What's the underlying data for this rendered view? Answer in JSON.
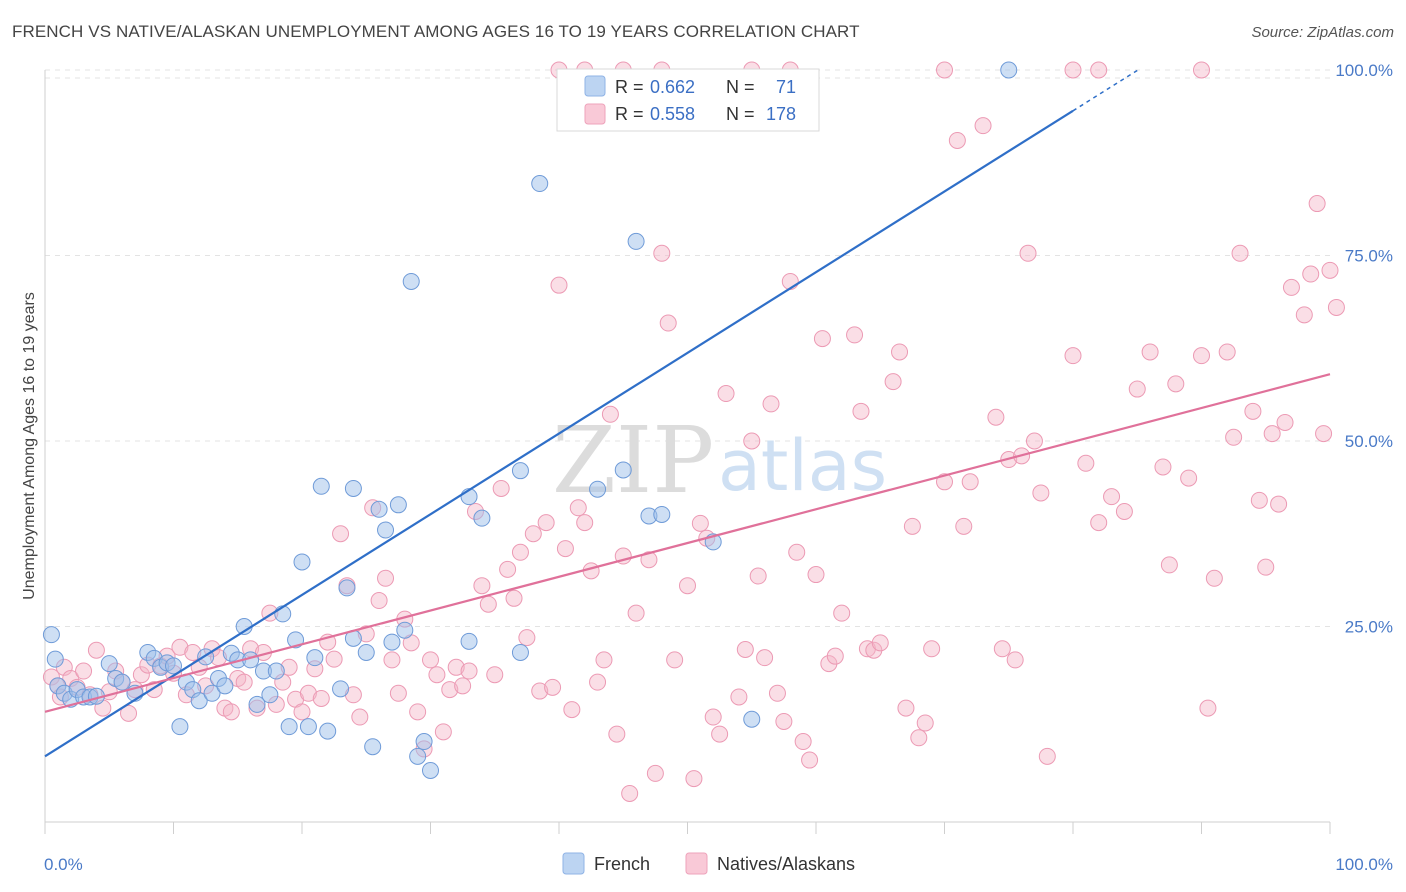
{
  "title": "FRENCH VS NATIVE/ALASKAN UNEMPLOYMENT AMONG AGES 16 TO 19 YEARS CORRELATION CHART",
  "source": "Source: ZipAtlas.com",
  "watermark": {
    "zip": "ZIP",
    "atlas": "atlas"
  },
  "stats": {
    "r_label": "R =",
    "n_label": "N =",
    "french": {
      "r": "0.662",
      "n": "71"
    },
    "natives": {
      "r": "0.558",
      "n": "178"
    }
  },
  "chart_data": {
    "type": "scatter",
    "title": "FRENCH VS NATIVE/ALASKAN UNEMPLOYMENT AMONG AGES 16 TO 19 YEARS CORRELATION CHART",
    "xlabel": "",
    "ylabel": "Unemployment Among Ages 16 to 19 years",
    "xlim": [
      0,
      100
    ],
    "ylim": [
      0,
      102
    ],
    "x_tick_labels": [
      "0.0%",
      "100.0%"
    ],
    "y_tick_values": [
      25,
      50,
      75,
      100
    ],
    "y_tick_labels": [
      "25.0%",
      "50.0%",
      "75.0%",
      "100.0%"
    ],
    "grid": "horizontal dashed",
    "legend_position": "bottom-center",
    "colors": {
      "french": "#9dbfea",
      "french_line": "#2f6fc8",
      "natives": "#f5b5c8",
      "natives_line": "#e0719a"
    },
    "series": [
      {
        "name": "French",
        "trend": {
          "x0": 0,
          "y0": 7.5,
          "x1": 80,
          "y1": 94.5
        },
        "points": [
          [
            0.5,
            23.9
          ],
          [
            0.8,
            20.6
          ],
          [
            1,
            17
          ],
          [
            1.5,
            16
          ],
          [
            2,
            15.2
          ],
          [
            2.5,
            16.5
          ],
          [
            3,
            15.5
          ],
          [
            3.5,
            15.5
          ],
          [
            4,
            15.6
          ],
          [
            5,
            20
          ],
          [
            5.5,
            18
          ],
          [
            6,
            17.5
          ],
          [
            7,
            16
          ],
          [
            8,
            21.5
          ],
          [
            8.5,
            20.7
          ],
          [
            9,
            19.5
          ],
          [
            9.5,
            20.1
          ],
          [
            10,
            19.7
          ],
          [
            10.5,
            11.5
          ],
          [
            11,
            17.5
          ],
          [
            11.5,
            16.5
          ],
          [
            12,
            15
          ],
          [
            12.5,
            20.9
          ],
          [
            13,
            16
          ],
          [
            13.5,
            18
          ],
          [
            14,
            17
          ],
          [
            14.5,
            21.4
          ],
          [
            15,
            20.5
          ],
          [
            15.5,
            25
          ],
          [
            16,
            20.5
          ],
          [
            16.5,
            14.5
          ],
          [
            17,
            19
          ],
          [
            17.5,
            15.8
          ],
          [
            18,
            19
          ],
          [
            18.5,
            26.7
          ],
          [
            19,
            11.5
          ],
          [
            19.5,
            23.2
          ],
          [
            20,
            33.7
          ],
          [
            20.5,
            11.5
          ],
          [
            21,
            20.8
          ],
          [
            21.5,
            43.9
          ],
          [
            22,
            10.9
          ],
          [
            23,
            16.6
          ],
          [
            23.5,
            30.2
          ],
          [
            24,
            43.6
          ],
          [
            24,
            23.4
          ],
          [
            25,
            21.5
          ],
          [
            25.5,
            8.8
          ],
          [
            26,
            40.8
          ],
          [
            26.5,
            38
          ],
          [
            27,
            22.9
          ],
          [
            27.5,
            41.4
          ],
          [
            28,
            24.5
          ],
          [
            28.5,
            71.5
          ],
          [
            29,
            7.5
          ],
          [
            29.5,
            9.5
          ],
          [
            30,
            5.6
          ],
          [
            33,
            42.5
          ],
          [
            34,
            39.6
          ],
          [
            33,
            23
          ],
          [
            37,
            21.5
          ],
          [
            37,
            46
          ],
          [
            43,
            43.5
          ],
          [
            45,
            46.1
          ],
          [
            46,
            76.9
          ],
          [
            47,
            39.9
          ],
          [
            48,
            40.1
          ],
          [
            52,
            36.4
          ],
          [
            55,
            12.5
          ],
          [
            38.5,
            84.7
          ],
          [
            75,
            100
          ]
        ]
      },
      {
        "name": "Natives/Alaskans",
        "trend": {
          "x0": 0,
          "y0": 13.5,
          "x1": 100,
          "y1": 59
        },
        "points": [
          [
            0.5,
            18.2
          ],
          [
            1,
            17
          ],
          [
            1.2,
            15.5
          ],
          [
            1.5,
            19.5
          ],
          [
            2,
            18
          ],
          [
            2.5,
            16.8
          ],
          [
            3,
            19
          ],
          [
            3.5,
            15.8
          ],
          [
            4,
            21.8
          ],
          [
            4.5,
            14
          ],
          [
            5,
            16.2
          ],
          [
            5.5,
            19
          ],
          [
            6,
            17.5
          ],
          [
            6.5,
            13.3
          ],
          [
            7,
            16.5
          ],
          [
            7.5,
            18.5
          ],
          [
            8,
            19.8
          ],
          [
            8.5,
            16.5
          ],
          [
            9,
            19.7
          ],
          [
            9.5,
            21
          ],
          [
            10,
            18.7
          ],
          [
            10.5,
            22.2
          ],
          [
            11,
            15.8
          ],
          [
            11.5,
            21.5
          ],
          [
            12,
            19.5
          ],
          [
            12.5,
            17
          ],
          [
            13,
            22
          ],
          [
            13.5,
            20.8
          ],
          [
            14,
            14
          ],
          [
            14.5,
            13.5
          ],
          [
            15,
            18
          ],
          [
            15.5,
            17.5
          ],
          [
            16,
            22
          ],
          [
            16.5,
            14
          ],
          [
            17,
            21.5
          ],
          [
            17.5,
            26.8
          ],
          [
            18,
            14.5
          ],
          [
            18.5,
            17.5
          ],
          [
            19,
            19.5
          ],
          [
            19.5,
            15.2
          ],
          [
            20,
            13.5
          ],
          [
            20.5,
            16
          ],
          [
            21,
            19.3
          ],
          [
            21.5,
            15.3
          ],
          [
            22,
            22.9
          ],
          [
            22.5,
            20.6
          ],
          [
            23,
            37.5
          ],
          [
            23.5,
            30.5
          ],
          [
            24,
            15.8
          ],
          [
            24.5,
            12.8
          ],
          [
            25,
            24
          ],
          [
            25.5,
            41
          ],
          [
            26,
            28.5
          ],
          [
            26.5,
            31.5
          ],
          [
            27,
            20.5
          ],
          [
            27.5,
            16
          ],
          [
            28,
            26
          ],
          [
            28.5,
            22.8
          ],
          [
            29,
            13.5
          ],
          [
            29.5,
            8.5
          ],
          [
            30,
            20.5
          ],
          [
            30.5,
            18.5
          ],
          [
            31,
            10.8
          ],
          [
            31.5,
            16.5
          ],
          [
            32,
            19.5
          ],
          [
            32.5,
            17
          ],
          [
            33,
            19
          ],
          [
            33.5,
            40.5
          ],
          [
            34,
            30.5
          ],
          [
            34.5,
            28
          ],
          [
            35,
            18.5
          ],
          [
            35.5,
            43.6
          ],
          [
            36,
            32.7
          ],
          [
            36.5,
            28.8
          ],
          [
            37,
            35
          ],
          [
            37.5,
            23.5
          ],
          [
            38,
            37.5
          ],
          [
            38.5,
            16.3
          ],
          [
            39,
            39
          ],
          [
            39.5,
            16.8
          ],
          [
            40,
            71
          ],
          [
            40.5,
            35.5
          ],
          [
            41,
            13.8
          ],
          [
            41.5,
            41
          ],
          [
            42,
            39
          ],
          [
            42.5,
            32.5
          ],
          [
            43,
            17.5
          ],
          [
            43.5,
            20.5
          ],
          [
            44,
            53.6
          ],
          [
            44.5,
            10.5
          ],
          [
            45,
            34.5
          ],
          [
            45.5,
            2.5
          ],
          [
            46,
            26.8
          ],
          [
            47,
            34
          ],
          [
            47.5,
            5.2
          ],
          [
            48,
            75.3
          ],
          [
            48.5,
            65.9
          ],
          [
            49,
            20.5
          ],
          [
            50,
            30.5
          ],
          [
            50.5,
            4.5
          ],
          [
            51,
            38.9
          ],
          [
            51.5,
            36.9
          ],
          [
            52,
            12.8
          ],
          [
            52.5,
            10.5
          ],
          [
            53,
            56.4
          ],
          [
            54,
            15.5
          ],
          [
            54.5,
            21.9
          ],
          [
            55,
            50
          ],
          [
            55.5,
            31.8
          ],
          [
            56,
            20.8
          ],
          [
            56.5,
            55
          ],
          [
            57,
            16
          ],
          [
            57.5,
            12.2
          ],
          [
            58,
            71.5
          ],
          [
            58.5,
            35
          ],
          [
            59,
            9.5
          ],
          [
            59.5,
            7
          ],
          [
            60,
            32
          ],
          [
            60.5,
            63.8
          ],
          [
            61,
            20
          ],
          [
            61.5,
            21
          ],
          [
            62,
            26.8
          ],
          [
            63,
            64.3
          ],
          [
            63.5,
            54
          ],
          [
            64,
            22
          ],
          [
            64.5,
            21.8
          ],
          [
            65,
            22.8
          ],
          [
            66,
            58
          ],
          [
            66.5,
            62
          ],
          [
            67,
            14
          ],
          [
            67.5,
            38.5
          ],
          [
            68,
            10
          ],
          [
            68.5,
            12
          ],
          [
            69,
            22
          ],
          [
            70,
            44.5
          ],
          [
            71,
            90.5
          ],
          [
            71.5,
            38.5
          ],
          [
            72,
            44.5
          ],
          [
            73,
            92.5
          ],
          [
            74,
            53.2
          ],
          [
            74.5,
            22
          ],
          [
            75,
            47.5
          ],
          [
            75.5,
            20.5
          ],
          [
            76,
            48
          ],
          [
            76.5,
            75.3
          ],
          [
            77,
            50
          ],
          [
            77.5,
            43
          ],
          [
            78,
            7.5
          ],
          [
            80,
            61.5
          ],
          [
            81,
            47
          ],
          [
            82,
            39
          ],
          [
            83,
            42.5
          ],
          [
            84,
            40.5
          ],
          [
            85,
            57
          ],
          [
            86,
            62
          ],
          [
            87,
            46.5
          ],
          [
            87.5,
            33.3
          ],
          [
            88,
            57.7
          ],
          [
            89,
            45
          ],
          [
            90,
            61.5
          ],
          [
            90.5,
            14
          ],
          [
            91,
            31.5
          ],
          [
            92,
            62
          ],
          [
            92.5,
            50.5
          ],
          [
            93,
            75.3
          ],
          [
            94,
            54
          ],
          [
            94.5,
            42
          ],
          [
            95,
            33
          ],
          [
            95.5,
            51
          ],
          [
            96,
            41.5
          ],
          [
            96.5,
            52.5
          ],
          [
            97,
            70.7
          ],
          [
            98,
            67
          ],
          [
            98.5,
            72.5
          ],
          [
            99,
            82
          ],
          [
            99.5,
            51
          ],
          [
            100,
            73
          ],
          [
            100.5,
            68
          ],
          [
            70,
            100
          ],
          [
            80,
            100
          ],
          [
            82,
            100
          ],
          [
            90,
            100
          ],
          [
            55,
            100
          ],
          [
            58,
            100
          ],
          [
            40,
            100
          ],
          [
            42,
            100
          ],
          [
            45,
            100
          ],
          [
            48,
            100
          ]
        ]
      }
    ]
  },
  "legend": {
    "french": "French",
    "natives": "Natives/Alaskans"
  }
}
